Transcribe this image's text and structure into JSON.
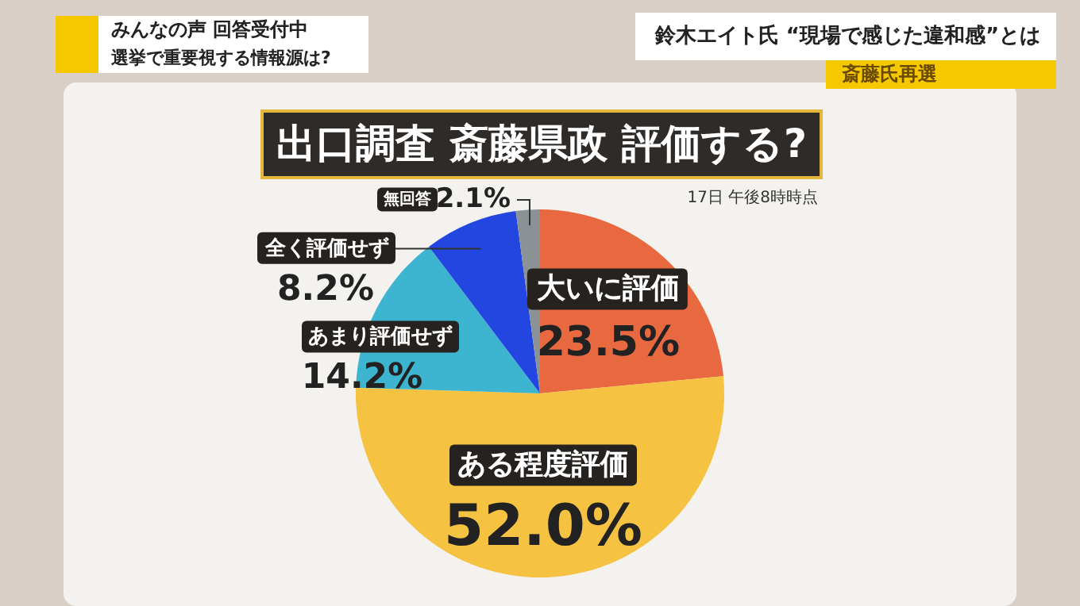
{
  "chart_data": {
    "type": "pie",
    "title": "出口調査 斎藤県政 評価する?",
    "categories": [
      "大いに評価",
      "ある程度評価",
      "あまり評価せず",
      "全く評価せず",
      "無回答"
    ],
    "values": [
      23.5,
      52.0,
      14.2,
      8.2,
      2.1
    ],
    "value_labels": [
      "23.5%",
      "52.0%",
      "14.2%",
      "8.2%",
      "2.1%"
    ],
    "colors": [
      "#e8693f",
      "#f5c242",
      "#3db5d0",
      "#2446e0",
      "#8a9296"
    ],
    "legend": false,
    "annotations": [
      "17日 午後8時時点",
      "みんなの声 回答受付中",
      "選挙で重要視する情報源は?",
      "鈴木エイト氏 “現場で感じた違和感”とは",
      "斎藤氏再選"
    ]
  }
}
